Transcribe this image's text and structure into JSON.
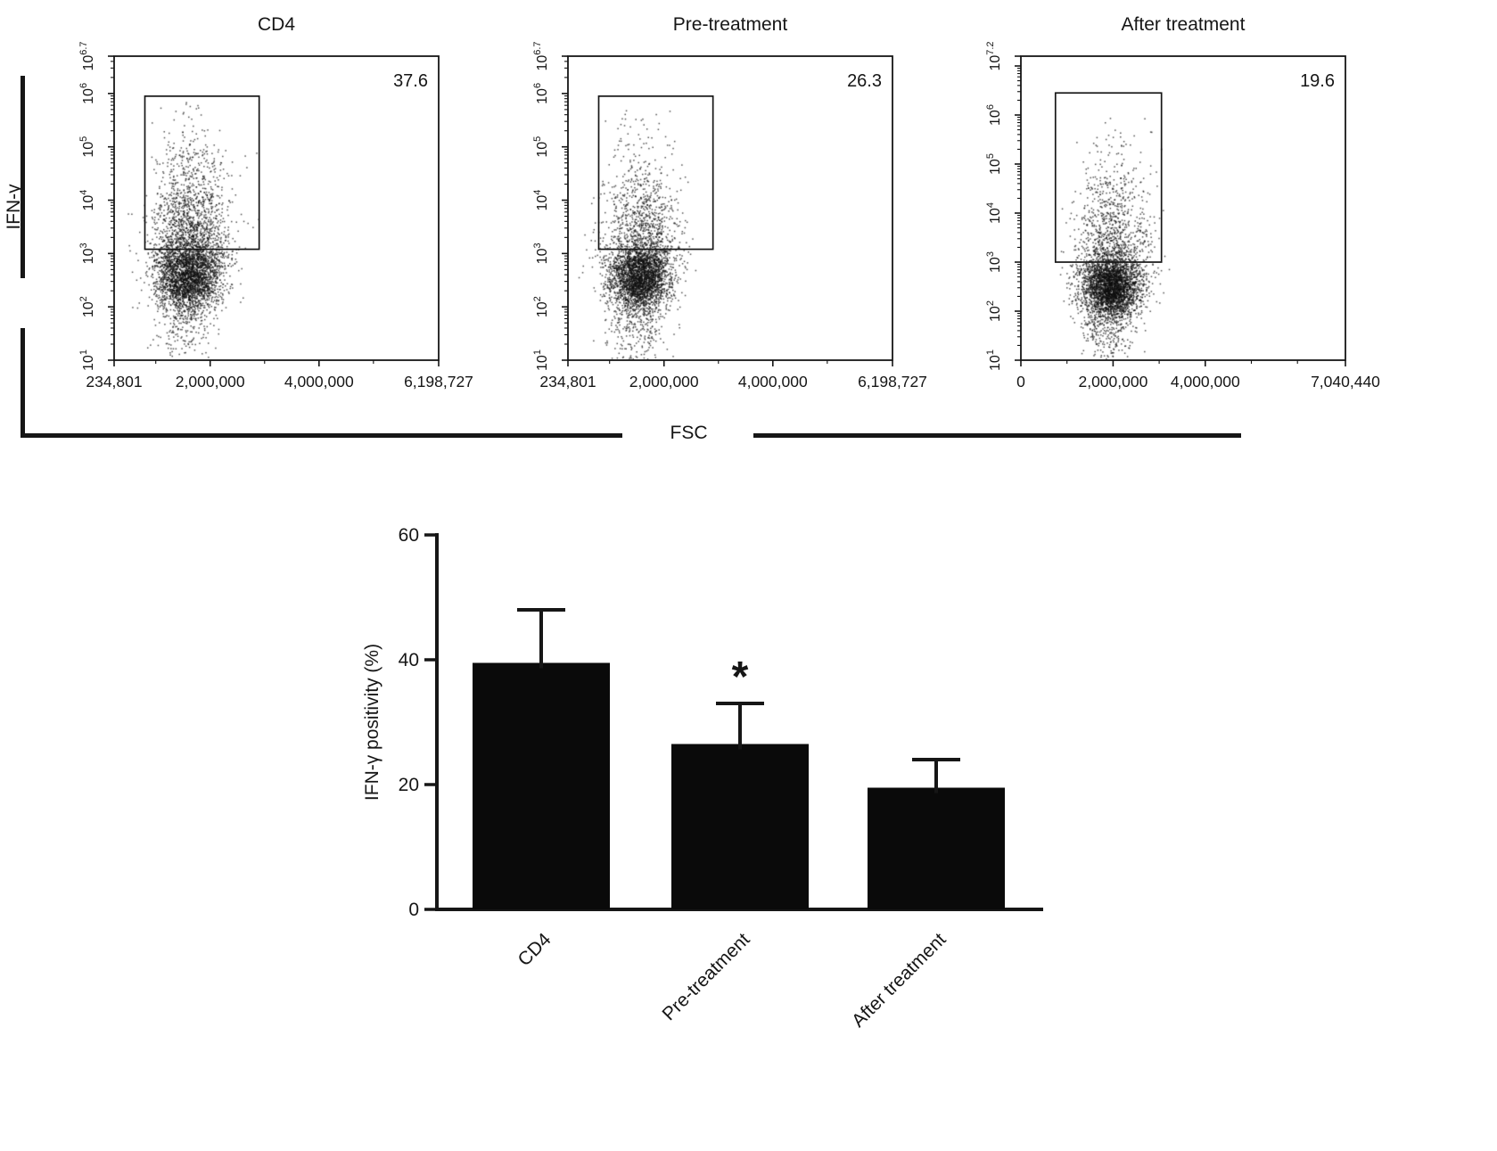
{
  "figure": {
    "ink": "#161616",
    "background": "#ffffff"
  },
  "labels": {
    "y_group": "IFN-γ",
    "x_group": "FSC"
  },
  "chart_data": [
    {
      "type": "scatter",
      "subtype": "flow_cytometry_dot_plot",
      "title": "CD4",
      "gate_label": "37.6",
      "xlabel": "FSC",
      "ylabel": "IFN-γ",
      "x_min": 234801,
      "x_max": 6198727,
      "x_tick_values": [
        234801,
        2000000,
        4000000,
        6198727
      ],
      "x_tick_labels": [
        "234,801",
        "2,000,000",
        "4,000,000",
        "6,198,727"
      ],
      "y_scale": "log10",
      "y_exp_min": 1,
      "y_exp_max": 6.7,
      "y_tick_exponents": [
        1,
        2,
        3,
        4,
        5,
        6,
        6.7
      ],
      "gate": {
        "x0": 800000,
        "x1": 2900000,
        "e0": 3.08,
        "e1": 5.95
      },
      "render": {
        "seed": 11,
        "n": 4300,
        "x_mean": 1600000,
        "x_sd": 300000,
        "blob_e_mean": 2.55,
        "blob_e_sd": 0.27,
        "tail_fraction": 0.4,
        "tail_e_scale": 1.05,
        "tail_e_max": 5.85,
        "low_fraction": 0.1
      }
    },
    {
      "type": "scatter",
      "subtype": "flow_cytometry_dot_plot",
      "title": "Pre-treatment",
      "gate_label": "26.3",
      "xlabel": "FSC",
      "ylabel": "IFN-γ",
      "x_min": 234801,
      "x_max": 6198727,
      "x_tick_values": [
        234801,
        2000000,
        4000000,
        6198727
      ],
      "x_tick_labels": [
        "234,801",
        "2,000,000",
        "4,000,000",
        "6,198,727"
      ],
      "y_scale": "log10",
      "y_exp_min": 1,
      "y_exp_max": 6.7,
      "y_tick_exponents": [
        1,
        2,
        3,
        4,
        5,
        6,
        6.7
      ],
      "gate": {
        "x0": 800000,
        "x1": 2900000,
        "e0": 3.08,
        "e1": 5.95
      },
      "render": {
        "seed": 22,
        "n": 4000,
        "x_mean": 1550000,
        "x_sd": 290000,
        "blob_e_mean": 2.55,
        "blob_e_sd": 0.27,
        "tail_fraction": 0.3,
        "tail_e_scale": 1.0,
        "tail_e_max": 5.7,
        "low_fraction": 0.12
      }
    },
    {
      "type": "scatter",
      "subtype": "flow_cytometry_dot_plot",
      "title": "After treatment",
      "gate_label": "19.6",
      "xlabel": "FSC",
      "ylabel": "IFN-γ",
      "x_min": 0,
      "x_max": 7040440,
      "x_tick_values": [
        0,
        2000000,
        4000000,
        7040440
      ],
      "x_tick_labels": [
        "0",
        "2,000,000",
        "4,000,000",
        "7,040,440"
      ],
      "y_scale": "log10",
      "y_exp_min": 1,
      "y_exp_max": 7.2,
      "y_tick_exponents": [
        1,
        2,
        3,
        4,
        5,
        6,
        7.2
      ],
      "gate": {
        "x0": 750000,
        "x1": 3050000,
        "e0": 3.0,
        "e1": 6.45
      },
      "render": {
        "seed": 33,
        "n": 4300,
        "x_mean": 1950000,
        "x_sd": 330000,
        "blob_e_mean": 2.5,
        "blob_e_sd": 0.28,
        "tail_fraction": 0.26,
        "tail_e_scale": 1.1,
        "tail_e_max": 6.0,
        "low_fraction": 0.12
      }
    },
    {
      "type": "bar",
      "categories": [
        "CD4",
        "Pre-treatment",
        "After treatment"
      ],
      "values": [
        39.5,
        26.5,
        19.5
      ],
      "errors_plus": [
        8.5,
        6.5,
        4.5
      ],
      "significance": [
        "",
        "*",
        ""
      ],
      "ylabel": "IFN-γ positivity (%)",
      "ylim": [
        0,
        60
      ],
      "y_ticks": [
        0,
        20,
        40,
        60
      ],
      "bar_color": "#0a0a0a"
    }
  ]
}
